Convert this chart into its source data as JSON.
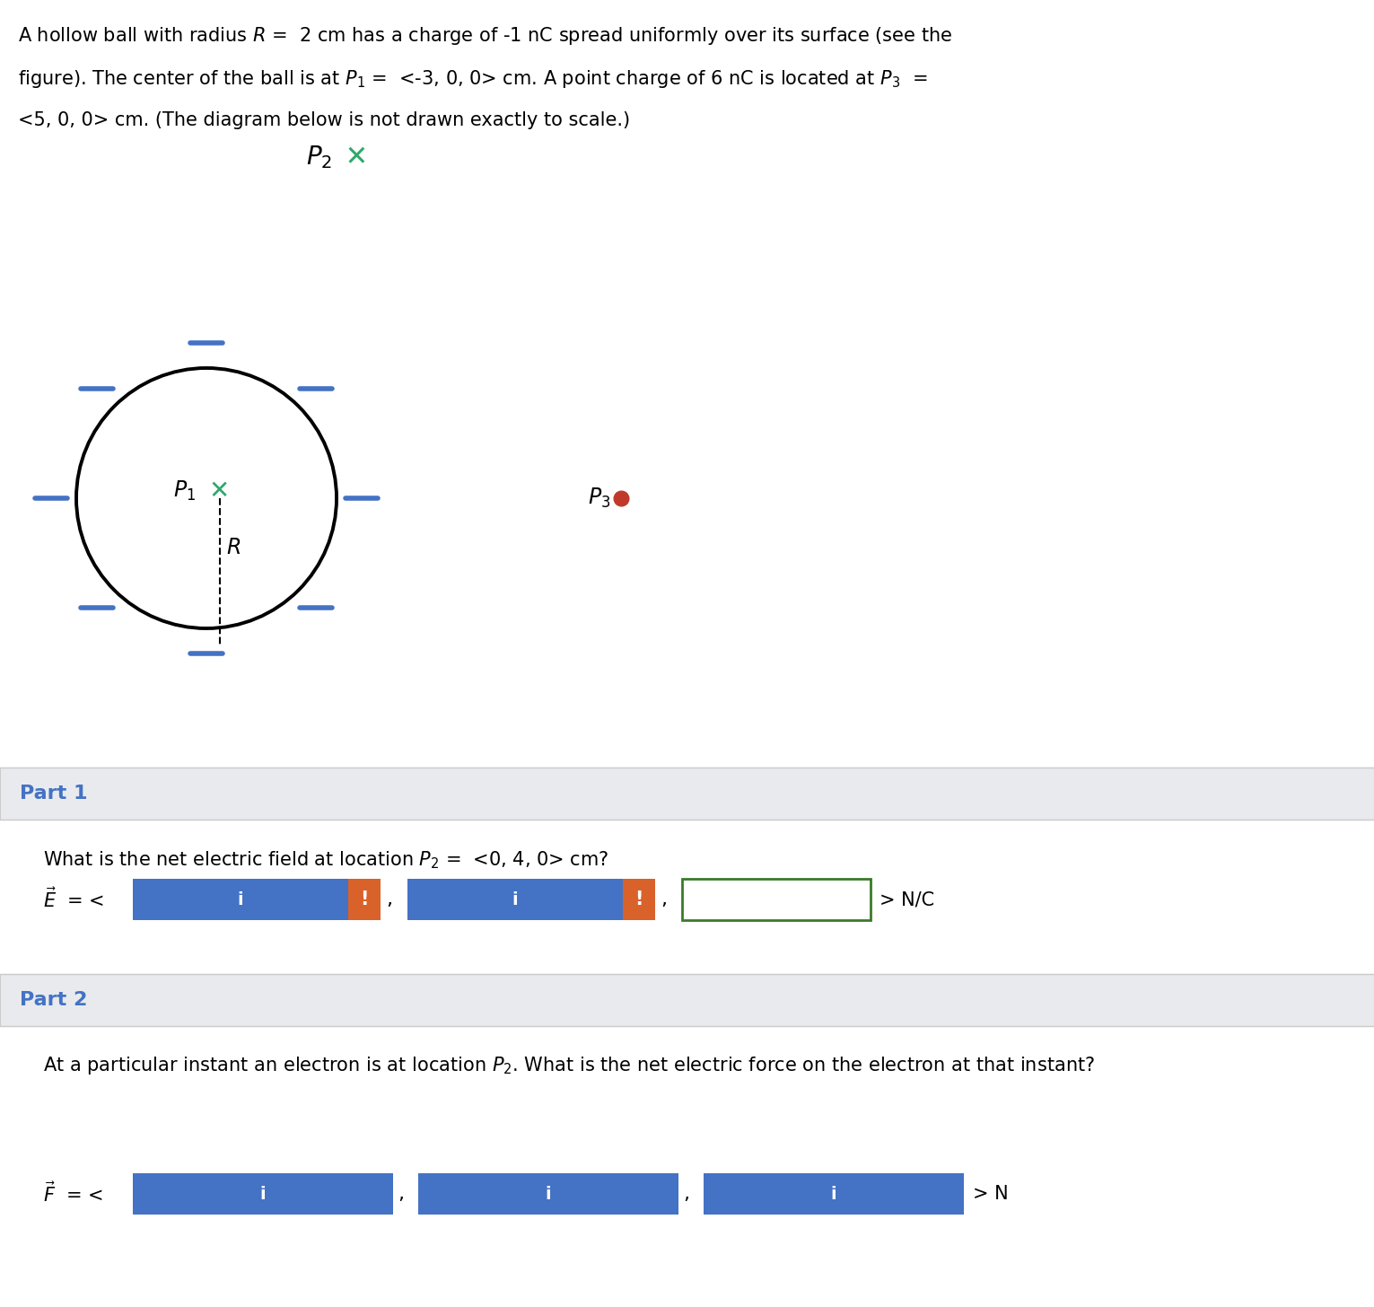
{
  "title_lines": [
    "A hollow ball with radius $R$ =  2 cm has a charge of -1 nC spread uniformly over its surface (see the",
    "figure). The center of the ball is at $P_1$ =  <-3, 0, 0> cm. A point charge of 6 nC is located at $P_3$  =",
    "<5, 0, 0> cm. (The diagram below is not drawn exactly to scale.)"
  ],
  "charge_color": "#4472C4",
  "p1_cross_color": "#2EA86B",
  "p3_dot_color": "#C0392B",
  "p2_cross_color": "#2EA86B",
  "blue_box_color": "#4472C4",
  "orange_box_color": "#D9622B",
  "green_box_border": "#3A7A2A",
  "part_label_color": "#4472C4",
  "fig_bg": "#FFFFFF",
  "part_bg": "#E8EAED",
  "part_border": "#CCCCCC"
}
